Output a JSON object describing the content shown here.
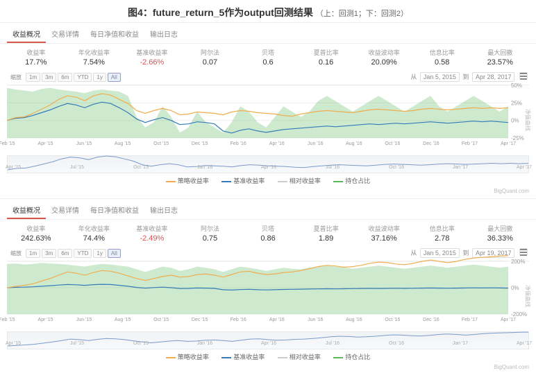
{
  "title_main": "图4：future_return_5作为output回测结果",
  "title_sub": "（上：回测1；下：回测2）",
  "tabs": [
    "收益概况",
    "交易详情",
    "每日净值和收益",
    "输出日志"
  ],
  "zoom": {
    "label": "缩放",
    "buttons": [
      "1m",
      "3m",
      "6m",
      "YTD",
      "1y",
      "All"
    ],
    "active": 5,
    "from_lbl": "从",
    "to_lbl": "到"
  },
  "legend": {
    "strategy": "策略收益率",
    "benchmark": "基准收益率",
    "alpha": "相对收益率",
    "position": "持仓占比"
  },
  "colors": {
    "strategy": "#f0ad4e",
    "benchmark": "#337ab7",
    "alpha": "#cccccc",
    "position": "#5cb85c",
    "grid": "#eeeeee",
    "axis": "#999999",
    "bg": "#ffffff",
    "nav_line": "#7a9acc"
  },
  "metric_labels": [
    "收益率",
    "年化收益率",
    "基准收益率",
    "阿尔法",
    "贝塔",
    "夏普比率",
    "收益波动率",
    "信息比率",
    "最大回撤"
  ],
  "brand": "BigQuant.com",
  "xticks": [
    "Feb '15",
    "Apr '15",
    "Jun '15",
    "Aug '15",
    "Oct '15",
    "Dec '15",
    "Feb '16",
    "Apr '16",
    "Jun '16",
    "Aug '16",
    "Oct '16",
    "Dec '16",
    "Feb '17",
    "Apr '17"
  ],
  "nav_xticks": [
    "Apr '15",
    "Jul '15",
    "Oct '15",
    "Jan '16",
    "Apr '16",
    "Jul '16",
    "Oct '16",
    "Jan '17",
    "Apr '17"
  ],
  "panels": [
    {
      "metrics": [
        "17.7%",
        "7.54%",
        "-2.66%",
        "0.07",
        "0.6",
        "0.16",
        "20.09%",
        "0.58",
        "23.57%"
      ],
      "date_from": "Jan 5, 2015",
      "date_to": "Apr 28, 2017",
      "yticks": [
        -25,
        0,
        25,
        50
      ],
      "series_strategy": [
        0,
        4,
        5,
        10,
        16,
        22,
        30,
        35,
        33,
        28,
        35,
        38,
        36,
        30,
        24,
        14,
        10,
        14,
        17,
        14,
        8,
        9,
        12,
        11,
        10,
        8,
        12,
        14,
        13,
        11,
        10,
        9,
        7,
        6,
        9,
        11,
        13,
        14,
        13,
        12,
        11,
        13,
        15,
        16,
        15,
        14,
        13,
        14,
        16,
        17,
        16,
        15,
        16,
        17,
        18,
        17,
        18,
        17,
        18
      ],
      "series_benchmark": [
        0,
        3,
        4,
        7,
        11,
        15,
        20,
        24,
        22,
        18,
        23,
        26,
        24,
        18,
        11,
        2,
        -3,
        1,
        4,
        0,
        -6,
        -5,
        -2,
        -3,
        -5,
        -15,
        -18,
        -14,
        -12,
        -15,
        -17,
        -15,
        -13,
        -12,
        -11,
        -10,
        -9,
        -8,
        -9,
        -8,
        -7,
        -6,
        -5,
        -6,
        -5,
        -4,
        -5,
        -4,
        -3,
        -2,
        -3,
        -4,
        -3,
        -2,
        -1,
        -2,
        -1,
        -2,
        -3
      ],
      "series_position": [
        95,
        92,
        90,
        88,
        93,
        95,
        92,
        90,
        88,
        85,
        90,
        92,
        90,
        88,
        80,
        40,
        20,
        30,
        60,
        40,
        10,
        20,
        50,
        30,
        20,
        10,
        30,
        60,
        50,
        30,
        20,
        40,
        60,
        50,
        40,
        50,
        70,
        80,
        70,
        60,
        50,
        60,
        70,
        80,
        70,
        60,
        50,
        60,
        70,
        80,
        60,
        50,
        60,
        70,
        80,
        70,
        60,
        50,
        60
      ],
      "pos_range": [
        0,
        100
      ]
    },
    {
      "metrics": [
        "242.63%",
        "74.4%",
        "-2.49%",
        "0.75",
        "0.86",
        "1.89",
        "37.16%",
        "2.78",
        "36.33%"
      ],
      "date_from": "Jan 5, 2015",
      "date_to": "Apr 19, 2017",
      "yticks": [
        -200,
        0,
        200
      ],
      "series_strategy": [
        0,
        10,
        18,
        30,
        50,
        70,
        95,
        120,
        110,
        95,
        115,
        130,
        125,
        110,
        90,
        70,
        55,
        70,
        85,
        95,
        80,
        85,
        100,
        105,
        95,
        80,
        100,
        120,
        125,
        110,
        100,
        105,
        115,
        120,
        130,
        145,
        160,
        170,
        165,
        155,
        160,
        170,
        185,
        195,
        190,
        180,
        175,
        185,
        200,
        210,
        200,
        190,
        200,
        215,
        225,
        230,
        235,
        240,
        243
      ],
      "series_benchmark": [
        0,
        3,
        4,
        7,
        11,
        15,
        20,
        24,
        22,
        18,
        23,
        26,
        24,
        18,
        11,
        2,
        -3,
        1,
        4,
        0,
        -6,
        -5,
        -2,
        -3,
        -5,
        -15,
        -18,
        -14,
        -12,
        -15,
        -17,
        -15,
        -13,
        -12,
        -11,
        -10,
        -9,
        -8,
        -9,
        -8,
        -7,
        -6,
        -5,
        -6,
        -5,
        -4,
        -5,
        -4,
        -3,
        -2,
        -3,
        -4,
        -3,
        -2,
        -1,
        -2,
        -1,
        -2,
        -3
      ],
      "series_position": [
        95,
        96,
        94,
        95,
        97,
        96,
        95,
        94,
        92,
        90,
        93,
        95,
        94,
        92,
        90,
        85,
        80,
        85,
        90,
        88,
        82,
        85,
        90,
        88,
        85,
        80,
        85,
        90,
        88,
        85,
        82,
        85,
        88,
        86,
        85,
        88,
        90,
        92,
        90,
        88,
        86,
        88,
        90,
        92,
        90,
        88,
        86,
        88,
        90,
        92,
        90,
        88,
        90,
        92,
        94,
        92,
        90,
        88,
        90
      ],
      "pos_range": [
        0,
        100
      ]
    }
  ]
}
